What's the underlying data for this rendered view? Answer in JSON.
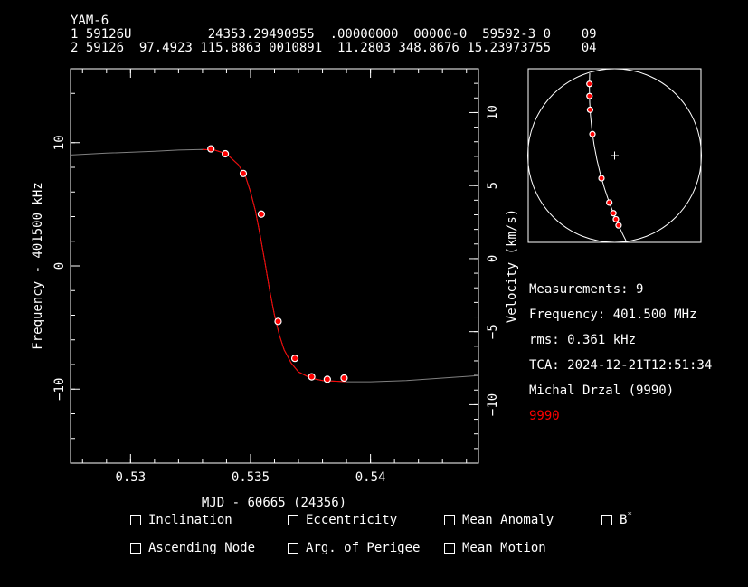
{
  "tle": {
    "name": "YAM-6",
    "line1": "1 59126U          24353.29490955  .00000000  00000-0  59592-3 0    09",
    "line2": "2 59126  97.4923 115.8863 0010891  11.2803 348.8676 15.23973755    04"
  },
  "colors": {
    "background": "#000000",
    "axes": "#ffffff",
    "fit": "#ff0000",
    "model": "#808080",
    "point_fill": "#ff0000"
  },
  "chart_data": {
    "type": "scatter",
    "xlabel": "MJD - 60665 (24356)",
    "ylabel": "Frequency - 401500 kHz",
    "ylabel_right": "Velocity (km/s)",
    "xlim": [
      0.5275,
      0.5445
    ],
    "ylim": [
      -16,
      16
    ],
    "ylim_right": [
      -14.0,
      13.0
    ],
    "x_ticks": [
      0.53,
      0.535,
      0.54
    ],
    "x_tick_labels": [
      "0.53",
      "0.535",
      "0.54"
    ],
    "y_ticks": [
      10,
      0,
      -10
    ],
    "y_tick_labels": [
      "10",
      "0",
      "−10"
    ],
    "y_right_ticks": [
      10,
      5,
      0,
      -5,
      -10
    ],
    "y_right_tick_labels": [
      "10",
      "5",
      "0",
      "−5",
      "−10"
    ],
    "grid": false,
    "series": [
      {
        "x": [
          0.53335,
          0.53395,
          0.5347,
          0.53545,
          0.53615,
          0.53685,
          0.53755,
          0.5382,
          0.5389
        ],
        "y": [
          9.5,
          9.1,
          7.5,
          4.2,
          -4.5,
          -7.5,
          -9.0,
          -9.2,
          -9.1
        ]
      }
    ],
    "fit_curve": {
      "x": [
        0.5275,
        0.529,
        0.531,
        0.532,
        0.533,
        0.5335,
        0.534,
        0.5345,
        0.5348,
        0.535,
        0.5352,
        0.5354,
        0.5356,
        0.5358,
        0.536,
        0.5362,
        0.5364,
        0.5367,
        0.537,
        0.5375,
        0.538,
        0.539,
        0.54,
        0.5415,
        0.543,
        0.5445
      ],
      "y": [
        9.0,
        9.15,
        9.3,
        9.4,
        9.45,
        9.4,
        9.1,
        8.2,
        7.2,
        6.0,
        4.5,
        2.5,
        0.3,
        -2.0,
        -4.0,
        -5.6,
        -6.8,
        -7.9,
        -8.6,
        -9.1,
        -9.3,
        -9.4,
        -9.4,
        -9.3,
        -9.1,
        -8.9
      ]
    },
    "ground_track": {
      "measurements": [
        {
          "v": 11.1
        },
        {
          "v": 10.3
        },
        {
          "v": 9.4
        },
        {
          "v": 7.8
        },
        {
          "v": 4.9
        },
        {
          "v": 3.3
        },
        {
          "v": 2.6
        },
        {
          "v": 2.2
        },
        {
          "v": 1.8
        }
      ]
    }
  },
  "info": {
    "measurements": "Measurements: 9",
    "frequency": "Frequency: 401.500 MHz",
    "rms": "rms: 0.361 kHz",
    "tca": "TCA: 2024-12-21T12:51:34",
    "observer": "Michal Drzal (9990)",
    "site_id": "9990"
  },
  "checkboxes": [
    {
      "label": "Inclination"
    },
    {
      "label": "Eccentricity"
    },
    {
      "label": "Mean Anomaly"
    },
    {
      "label": "B",
      "sup": "*"
    },
    {
      "label": "Ascending Node"
    },
    {
      "label": "Arg. of Perigee"
    },
    {
      "label": "Mean Motion"
    }
  ]
}
